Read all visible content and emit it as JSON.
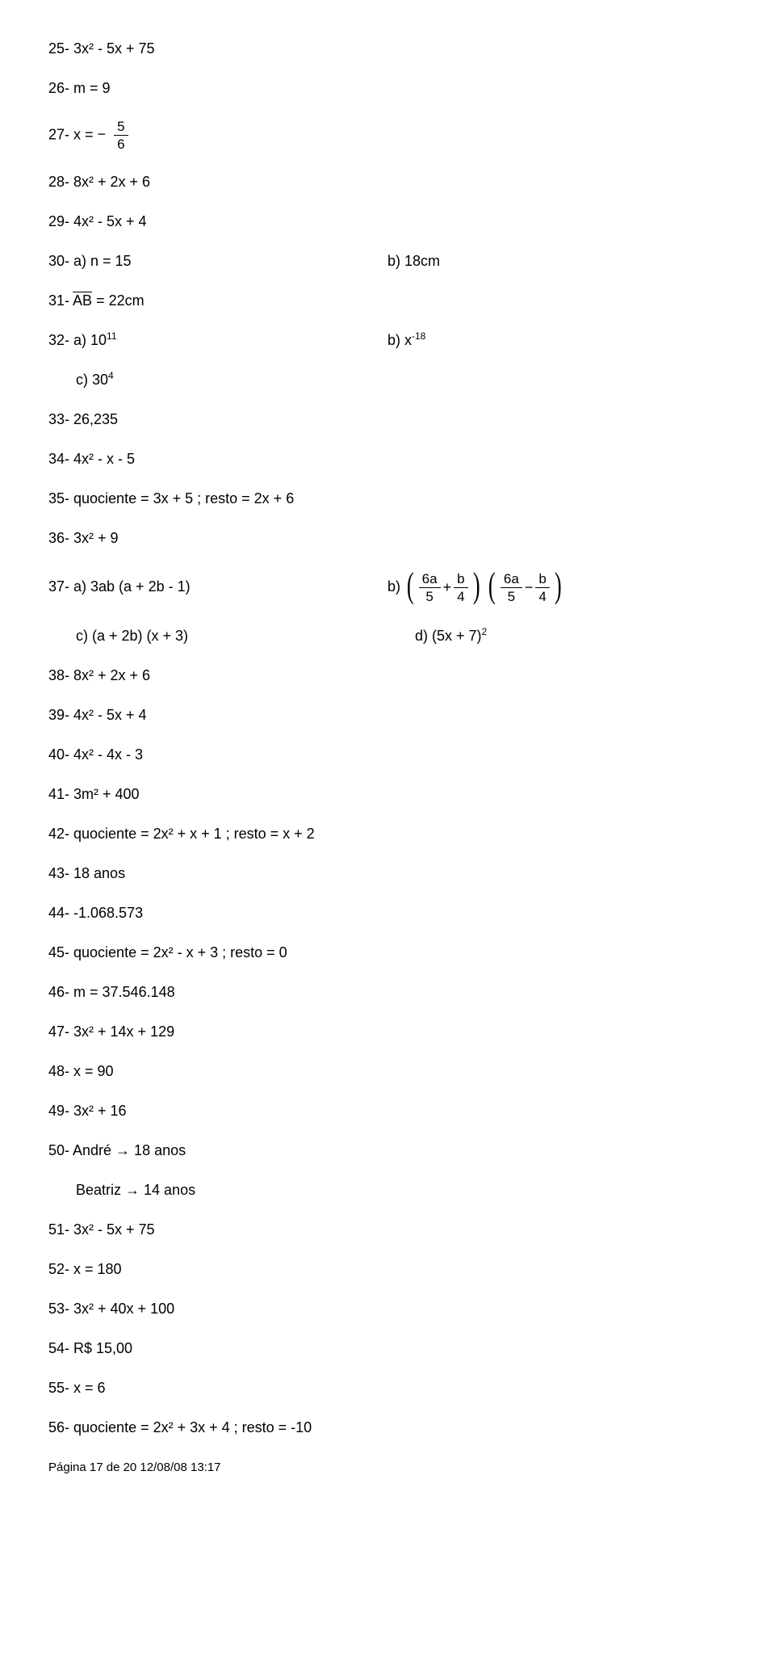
{
  "l25": "25- 3x² - 5x + 75",
  "l26": "26- m = 9",
  "l27_a": "27- x = ",
  "l27_minus": "−",
  "l27_num": "5",
  "l27_den": "6",
  "l28": "28- 8x² + 2x + 6",
  "l29": "29- 4x² - 5x + 4",
  "l30a": "30- a) n = 15",
  "l30b": "b) 18cm",
  "l31_pre": "31- ",
  "l31_ab": "AB",
  "l31_post": " = 22cm",
  "l32a": "32- a) 10",
  "l32a_sup": "11",
  "l32b": "b) x",
  "l32b_sup": "-18",
  "l32c": "c) 30",
  "l32c_sup": "4",
  "l33": "33- 26,235",
  "l34": "34- 4x² - x - 5",
  "l35": "35- quociente = 3x + 5     ;     resto = 2x + 6",
  "l36": "36- 3x² + 9",
  "l37a": "37- a) 3ab (a + 2b - 1)",
  "l37b_pre": "b) ",
  "l37b_f1n": "6a",
  "l37b_f1d": "5",
  "l37b_plus": " + ",
  "l37b_f2n": "b",
  "l37b_f2d": "4",
  "l37b_gap": " ",
  "l37b_f3n": "6a",
  "l37b_f3d": "5",
  "l37b_minus": " − ",
  "l37b_f4n": "b",
  "l37b_f4d": "4",
  "l37c": "c) (a + 2b) (x + 3)",
  "l37d": "d) (5x + 7)",
  "l37d_sup": "2",
  "l38": "38- 8x² + 2x + 6",
  "l39": "39- 4x² - 5x + 4",
  "l40": "40- 4x² - 4x - 3",
  "l41": "41- 3m² + 400",
  "l42": "42- quociente = 2x² + x + 1     ;     resto = x + 2",
  "l43": "43- 18 anos",
  "l44": "44- -1.068.573",
  "l45": "45- quociente = 2x² - x + 3     ;     resto = 0",
  "l46": "46- m = 37.546.148",
  "l47": "47- 3x² + 14x + 129",
  "l48": "48- x = 90",
  "l49": "49- 3x² + 16",
  "l50a": "50- André → 18 anos",
  "l50b": "Beatriz → 14 anos",
  "l51": "51- 3x² - 5x + 75",
  "l52": "52- x = 180",
  "l53": "53- 3x² + 40x + 100",
  "l54": "54- R$ 15,00",
  "l55": "55- x = 6",
  "l56": "56- quociente = 2x² + 3x + 4     ;     resto = -10",
  "footer": "Página 17 de 20   12/08/08   13:17"
}
